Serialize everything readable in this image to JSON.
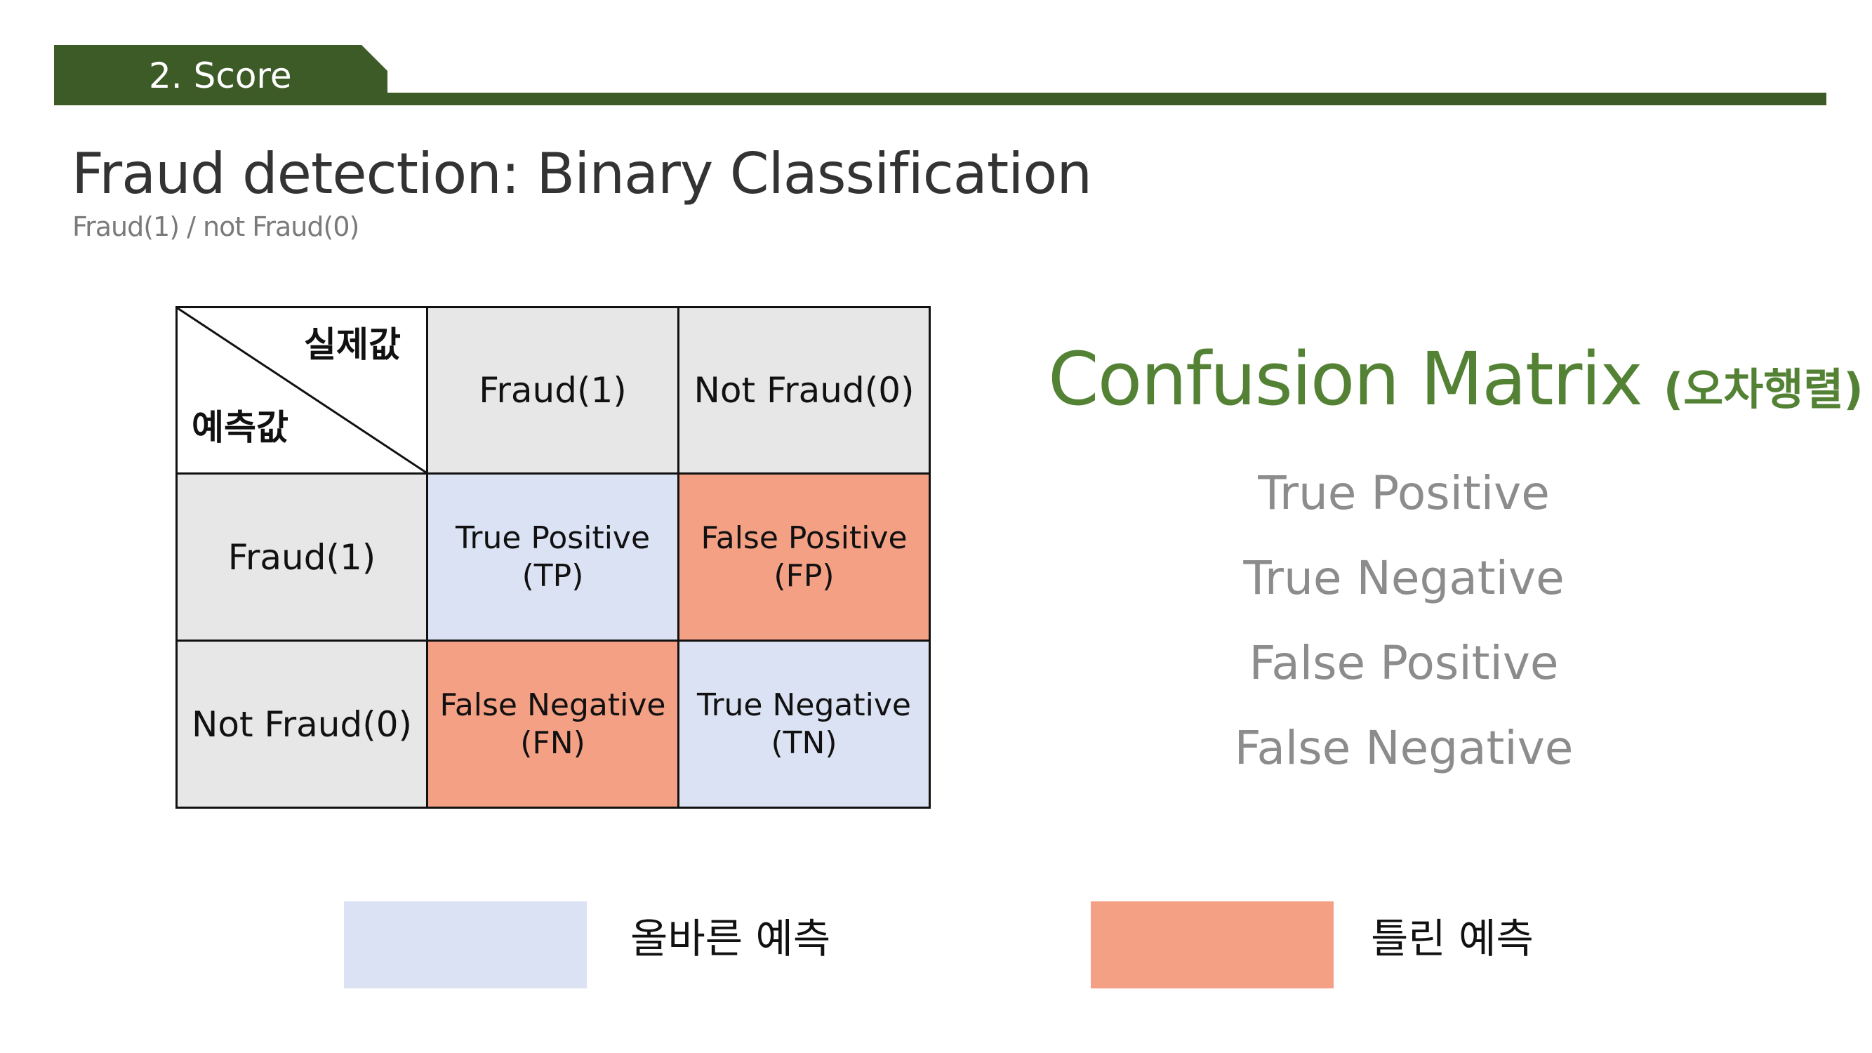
{
  "header": {
    "section_label": "2. Score",
    "accent_color": "#3d5b26"
  },
  "title": "Fraud detection: Binary Classification",
  "subtitle": "Fraud(1) / not Fraud(0)",
  "matrix": {
    "corner_actual": "실제값",
    "corner_predicted": "예측값",
    "column_headers": [
      "Fraud(1)",
      "Not Fraud(0)"
    ],
    "rows": [
      {
        "header": "Fraud(1)",
        "cells": [
          {
            "line1": "True Positive",
            "line2": "(TP)",
            "kind": "correct"
          },
          {
            "line1": "False Positive",
            "line2": "(FP)",
            "kind": "wrong"
          }
        ]
      },
      {
        "header": "Not Fraud(0)",
        "cells": [
          {
            "line1": "False Negative",
            "line2": "(FN)",
            "kind": "wrong"
          },
          {
            "line1": "True Negative",
            "line2": "(TN)",
            "kind": "correct"
          }
        ]
      }
    ]
  },
  "confusion": {
    "title": "Confusion Matrix",
    "title_note": "(오차행렬)",
    "title_color": "#548235",
    "terms": [
      "True Positive",
      "True Negative",
      "False Positive",
      "False Negative"
    ]
  },
  "legend": {
    "correct": {
      "label": "올바른 예측",
      "color": "#dae2f3"
    },
    "wrong": {
      "label": "틀린 예측",
      "color": "#f4a085"
    }
  }
}
